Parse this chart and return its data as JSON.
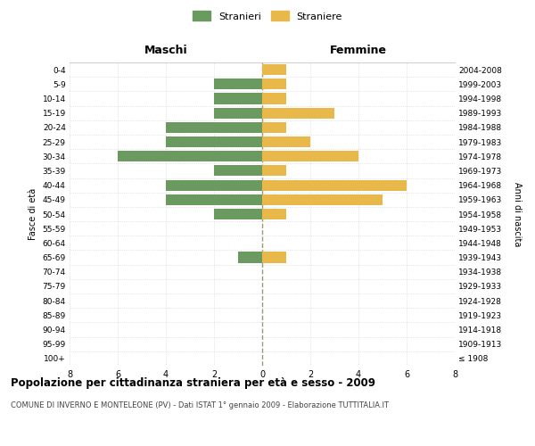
{
  "age_groups": [
    "100+",
    "95-99",
    "90-94",
    "85-89",
    "80-84",
    "75-79",
    "70-74",
    "65-69",
    "60-64",
    "55-59",
    "50-54",
    "45-49",
    "40-44",
    "35-39",
    "30-34",
    "25-29",
    "20-24",
    "15-19",
    "10-14",
    "5-9",
    "0-4"
  ],
  "birth_years": [
    "≤ 1908",
    "1909-1913",
    "1914-1918",
    "1919-1923",
    "1924-1928",
    "1929-1933",
    "1934-1938",
    "1939-1943",
    "1944-1948",
    "1949-1953",
    "1954-1958",
    "1959-1963",
    "1964-1968",
    "1969-1973",
    "1974-1978",
    "1979-1983",
    "1984-1988",
    "1989-1993",
    "1994-1998",
    "1999-2003",
    "2004-2008"
  ],
  "maschi": [
    0,
    0,
    0,
    0,
    0,
    0,
    0,
    1,
    0,
    0,
    2,
    4,
    4,
    2,
    6,
    4,
    4,
    2,
    2,
    2,
    0
  ],
  "femmine": [
    0,
    0,
    0,
    0,
    0,
    0,
    0,
    1,
    0,
    0,
    1,
    5,
    6,
    1,
    4,
    2,
    1,
    3,
    1,
    1,
    1
  ],
  "color_maschi": "#6a9a5f",
  "color_femmine": "#e8b84b",
  "title": "Popolazione per cittadinanza straniera per età e sesso - 2009",
  "subtitle": "COMUNE DI INVERNO E MONTELEONE (PV) - Dati ISTAT 1° gennaio 2009 - Elaborazione TUTTITALIA.IT",
  "label_left": "Maschi",
  "label_right": "Femmine",
  "ylabel_left": "Fasce di età",
  "ylabel_right": "Anni di nascita",
  "legend_maschi": "Stranieri",
  "legend_femmine": "Straniere",
  "xlim": 8,
  "background_color": "#ffffff",
  "grid_color": "#d0d0d0",
  "center_line_color": "#999977"
}
